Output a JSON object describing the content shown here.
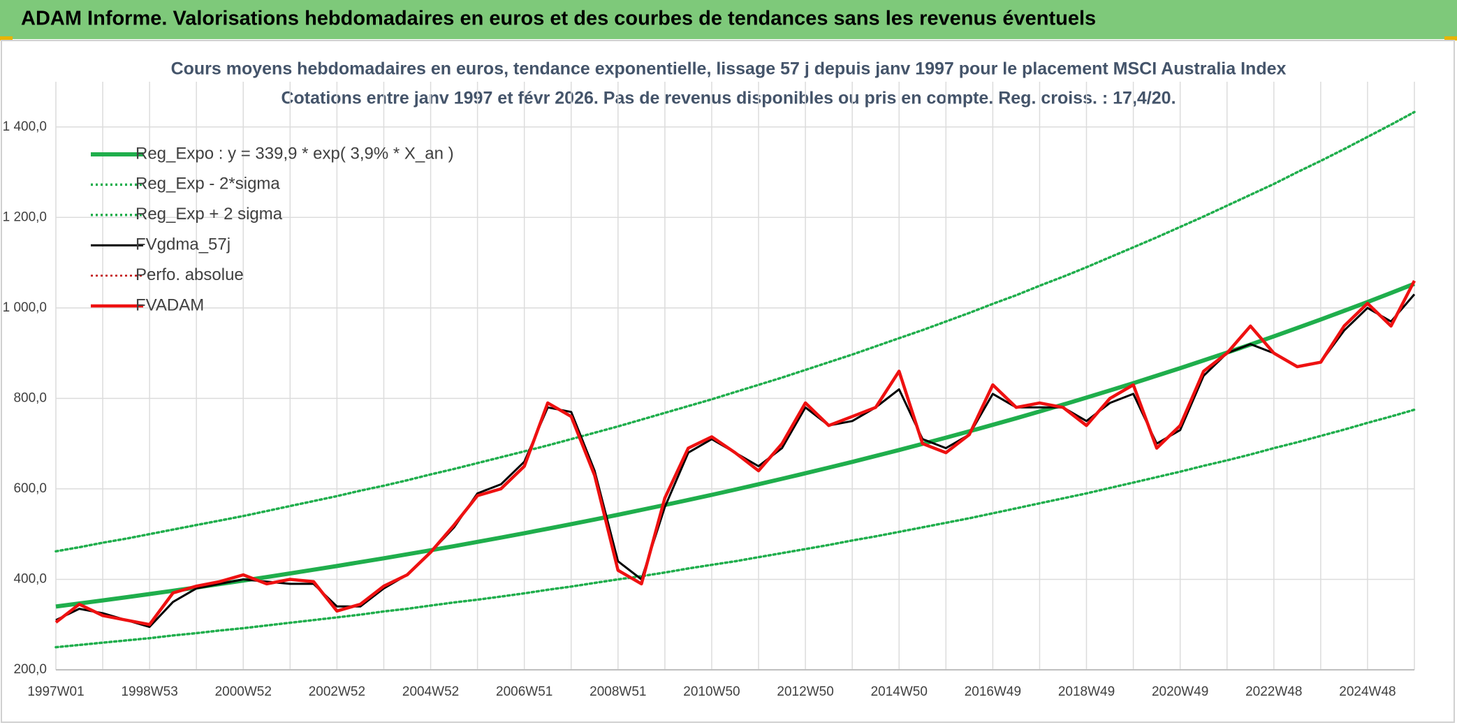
{
  "header": {
    "title": "ADAM Informe. Valorisations hebdomadaires en euros et des courbes de tendances sans les revenus éventuels"
  },
  "chart_data": {
    "type": "line",
    "title": "Cours moyens hebdomadaires en euros, tendance exponentielle, lissage 57 j depuis janv 1997 pour le placement MSCI Australia Index",
    "subtitle": "Cotations entre janv 1997 et févr 2026. Pas de revenus disponibles ou pris en compte. Reg. croiss. : 17,4/20.",
    "categories": [
      "1997W01",
      null,
      null,
      null,
      "1998W53",
      null,
      null,
      null,
      "2000W52",
      null,
      null,
      null,
      "2002W52",
      null,
      null,
      null,
      "2004W52",
      null,
      null,
      null,
      "2006W51",
      null,
      null,
      null,
      "2008W51",
      null,
      null,
      null,
      "2010W50",
      null,
      null,
      null,
      "2012W50",
      null,
      null,
      null,
      "2014W50",
      null,
      null,
      null,
      "2016W49",
      null,
      null,
      null,
      "2018W49",
      null,
      null,
      null,
      "2020W49",
      null,
      null,
      null,
      "2022W48",
      null,
      null,
      null,
      "2024W48",
      null,
      null
    ],
    "ylim": [
      200,
      1500
    ],
    "yticks": [
      {
        "value": 200,
        "label": "200,0"
      },
      {
        "value": 400,
        "label": "400,0"
      },
      {
        "value": 600,
        "label": "600,0"
      },
      {
        "value": 800,
        "label": "800,0"
      },
      {
        "value": 1000,
        "label": "1 000,0"
      },
      {
        "value": 1200,
        "label": "1 200,0"
      },
      {
        "value": 1400,
        "label": "1 400,0"
      }
    ],
    "grid": true,
    "legend": "top-left",
    "series": [
      {
        "name": "Reg_Expo : y = 339,9 * exp( 3,9% *  X_an )",
        "color": "#1fae4c",
        "style": "solid",
        "values": [
          339.9,
          346.6,
          353.4,
          360.4,
          367.5,
          374.7,
          382.1,
          389.6,
          397.3,
          405.1,
          413.1,
          421.2,
          429.5,
          438.0,
          446.6,
          455.4,
          464.4,
          473.5,
          482.8,
          492.3,
          502.0,
          511.9,
          522.0,
          532.3,
          542.8,
          553.5,
          564.4,
          575.5,
          586.8,
          598.4,
          610.2,
          622.2,
          634.5,
          647.0,
          659.7,
          672.7,
          685.9,
          699.4,
          713.2,
          727.3,
          741.6,
          756.2,
          771.1,
          786.3,
          801.8,
          817.6,
          833.7,
          850.1,
          866.8,
          883.9,
          901.3,
          919.0,
          937.1,
          955.6,
          974.4,
          993.6,
          1013.1,
          1033.1,
          1053.4
        ]
      },
      {
        "name": "Reg_Exp - 2*sigma",
        "color": "#1fae4c",
        "style": "dotted",
        "values": [
          250,
          255,
          260,
          265,
          270,
          276,
          281,
          287,
          292,
          298,
          304,
          310,
          316,
          322,
          329,
          335,
          342,
          349,
          355,
          362,
          369,
          377,
          384,
          392,
          400,
          407,
          415,
          424,
          432,
          440,
          449,
          458,
          467,
          476,
          486,
          495,
          505,
          515,
          525,
          535,
          546,
          557,
          568,
          579,
          590,
          602,
          614,
          626,
          638,
          651,
          663,
          676,
          690,
          703,
          717,
          731,
          746,
          760,
          775
        ]
      },
      {
        "name": "Reg_Exp + 2 sigma",
        "color": "#1fae4c",
        "style": "dotted",
        "values": [
          462,
          471,
          481,
          490,
          500,
          510,
          520,
          530,
          540,
          551,
          562,
          573,
          584,
          596,
          607,
          619,
          632,
          644,
          657,
          670,
          683,
          696,
          710,
          724,
          738,
          753,
          768,
          783,
          798,
          814,
          830,
          846,
          863,
          880,
          897,
          915,
          933,
          951,
          970,
          989,
          1009,
          1028,
          1049,
          1069,
          1090,
          1112,
          1134,
          1156,
          1179,
          1202,
          1226,
          1250,
          1274,
          1300,
          1325,
          1351,
          1378,
          1405,
          1433
        ]
      },
      {
        "name": "FVgdma_57j",
        "color": "#000000",
        "style": "solid",
        "values": [
          310,
          335,
          325,
          310,
          295,
          350,
          380,
          390,
          400,
          395,
          390,
          390,
          340,
          340,
          380,
          410,
          460,
          515,
          590,
          610,
          660,
          780,
          770,
          640,
          440,
          400,
          560,
          680,
          710,
          680,
          650,
          690,
          780,
          740,
          750,
          780,
          820,
          710,
          690,
          720,
          810,
          780,
          780,
          780,
          750,
          790,
          810,
          700,
          730,
          850,
          900,
          920,
          900,
          870,
          880,
          950,
          1000,
          970,
          1030
        ]
      },
      {
        "name": "Perfo. absolue",
        "color": "#c00000",
        "style": "dotted",
        "values": [
          null,
          null,
          null,
          null,
          null,
          null,
          null,
          null,
          null,
          null,
          null,
          null,
          null,
          null,
          null,
          null,
          null,
          null,
          null,
          null,
          null,
          null,
          null,
          null,
          null,
          null,
          null,
          null,
          null,
          null,
          null,
          null,
          null,
          null,
          null,
          null,
          null,
          null,
          null,
          null,
          null,
          null,
          null,
          null,
          null,
          null,
          null,
          null,
          null,
          null,
          null,
          null,
          null,
          null,
          null,
          null,
          null,
          null,
          null
        ]
      },
      {
        "name": "FVADAM",
        "color": "#ee1111",
        "style": "solid",
        "values": [
          305,
          345,
          320,
          310,
          300,
          370,
          385,
          395,
          410,
          390,
          400,
          395,
          330,
          345,
          385,
          410,
          460,
          520,
          585,
          600,
          650,
          790,
          760,
          630,
          420,
          390,
          580,
          690,
          715,
          680,
          640,
          700,
          790,
          740,
          760,
          780,
          860,
          700,
          680,
          720,
          830,
          780,
          790,
          780,
          740,
          800,
          830,
          690,
          740,
          860,
          900,
          960,
          900,
          870,
          880,
          960,
          1010,
          960,
          1060
        ]
      }
    ]
  }
}
